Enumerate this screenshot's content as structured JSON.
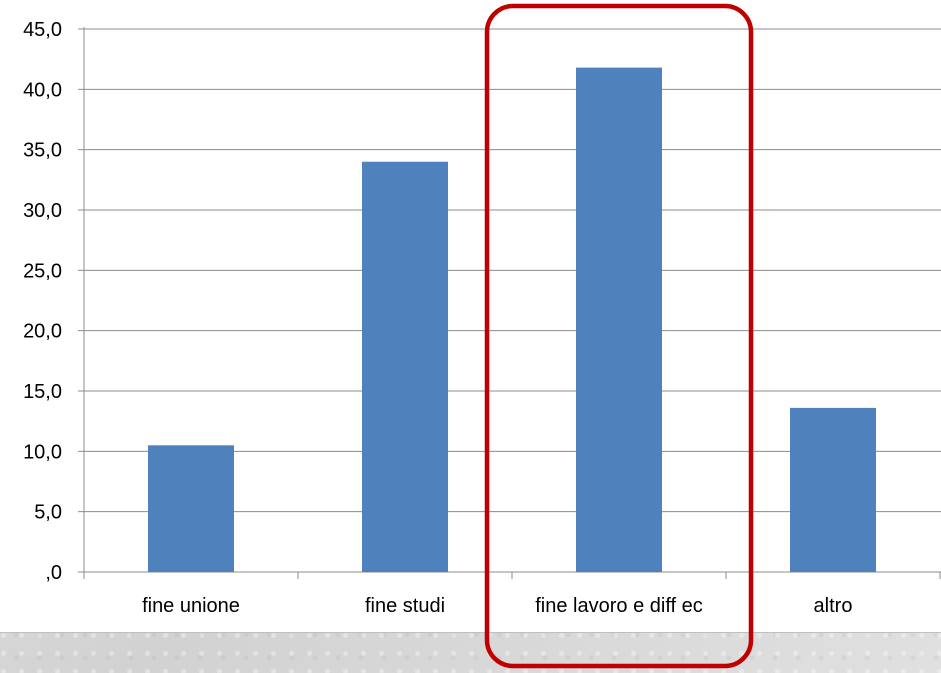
{
  "chart_data": {
    "type": "bar",
    "categories": [
      "fine unione",
      "fine studi",
      "fine lavoro e diff ec",
      "altro"
    ],
    "values": [
      10.5,
      34.0,
      41.8,
      13.6
    ],
    "ylim": [
      0,
      45
    ],
    "yticks": [
      ",0",
      "5,0",
      "10,0",
      "15,0",
      "20,0",
      "25,0",
      "30,0",
      "35,0",
      "40,0",
      "45,0"
    ],
    "ytick_values": [
      0,
      5,
      10,
      15,
      20,
      25,
      30,
      35,
      40,
      45
    ],
    "grid": true,
    "bar_color": "#4f81bd",
    "highlight": {
      "category": "fine lavoro e diff ec",
      "color": "#c00000"
    }
  }
}
